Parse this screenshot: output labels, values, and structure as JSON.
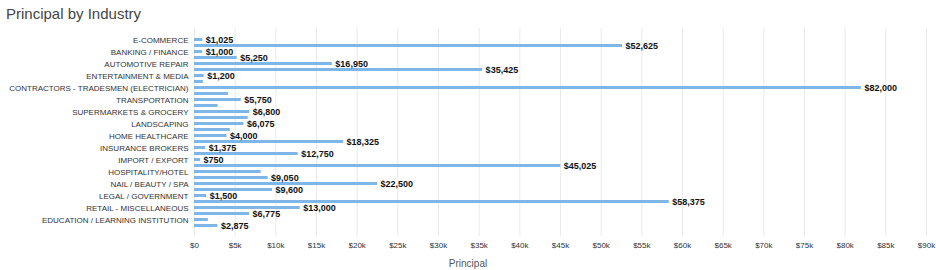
{
  "chart_data": {
    "type": "bar",
    "orientation": "horizontal",
    "title": "Principal by Industry",
    "xlabel": "Principal",
    "categories": [
      "E-COMMERCE",
      null,
      "BANKING / FINANCE",
      null,
      "AUTOMOTIVE REPAIR",
      null,
      "ENTERTAINMENT & MEDIA",
      null,
      "CONTRACTORS - TRADESMEN (ELECTRICIAN)",
      null,
      "TRANSPORTATION",
      null,
      "SUPERMARKETS & GROCERY",
      null,
      "LANDSCAPING",
      null,
      "HOME HEALTHCARE",
      null,
      "INSURANCE BROKERS",
      null,
      "IMPORT / EXPORT",
      null,
      "HOSPITALITY/HOTEL",
      null,
      "NAIL / BEAUTY / SPA",
      null,
      "LEGAL / GOVERNMENT",
      null,
      "RETAIL - MISCELLANEOUS",
      null,
      "EDUCATION / LEARNING INSTITUTION",
      null
    ],
    "values": [
      1025,
      52625,
      1000,
      5250,
      16950,
      35425,
      1200,
      1100,
      82000,
      4200,
      5750,
      2900,
      6800,
      6600,
      6075,
      4400,
      4000,
      18325,
      1375,
      12750,
      750,
      45025,
      8200,
      9050,
      22500,
      9600,
      1500,
      58375,
      13000,
      6775,
      1700,
      2875
    ],
    "value_labels": [
      "$1,025",
      "$52,625",
      "$1,000",
      "$5,250",
      "$16,950",
      "$35,425",
      "$1,200",
      null,
      "$82,000",
      null,
      "$5,750",
      null,
      "$6,800",
      null,
      "$6,075",
      null,
      "$4,000",
      "$18,325",
      "$1,375",
      "$12,750",
      "$750",
      "$45,025",
      null,
      "$9,050",
      "$22,500",
      "$9,600",
      "$1,500",
      "$58,375",
      "$13,000",
      "$6,775",
      null,
      "$2,875"
    ],
    "data_labels": true,
    "color": "#7fb6e8",
    "xlim": [
      0,
      90000
    ],
    "xticks": [
      {
        "value": 0,
        "label": "$0"
      },
      {
        "value": 5000,
        "label": "$5k"
      },
      {
        "value": 10000,
        "label": "$10k"
      },
      {
        "value": 15000,
        "label": "$15k"
      },
      {
        "value": 20000,
        "label": "$20k"
      },
      {
        "value": 25000,
        "label": "$25k"
      },
      {
        "value": 30000,
        "label": "$30k"
      },
      {
        "value": 35000,
        "label": "$35k"
      },
      {
        "value": 40000,
        "label": "$40k"
      },
      {
        "value": 45000,
        "label": "$45k"
      },
      {
        "value": 50000,
        "label": "$50k"
      },
      {
        "value": 55000,
        "label": "$55k"
      },
      {
        "value": 60000,
        "label": "$60k"
      },
      {
        "value": 65000,
        "label": "$65k"
      },
      {
        "value": 70000,
        "label": "$70k"
      },
      {
        "value": 75000,
        "label": "$75k"
      },
      {
        "value": 80000,
        "label": "$80k"
      },
      {
        "value": 85000,
        "label": "$85k"
      },
      {
        "value": 90000,
        "label": "$90k"
      }
    ],
    "grid": true
  }
}
